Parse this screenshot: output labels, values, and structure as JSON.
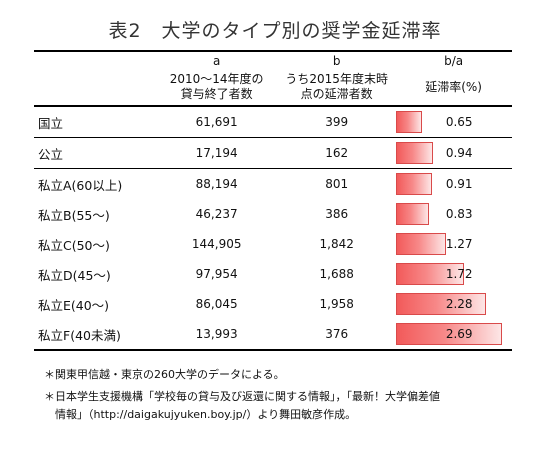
{
  "title": "表2　大学のタイプ別の奨学金延滞率",
  "columns": {
    "a_letter": "a",
    "b_letter": "b",
    "ratio_letter": "b/a",
    "a_label_line1": "2010〜14年度の",
    "a_label_line2": "貸与終了者数",
    "b_label_line1": "うち2015年度末時",
    "b_label_line2": "点の延滞者数",
    "rate_label": "延滞率(%)"
  },
  "rows": [
    {
      "name": "国立",
      "a": "61,691",
      "b": "399",
      "rate": "0.65"
    },
    {
      "name": "公立",
      "a": "17,194",
      "b": "162",
      "rate": "0.94"
    },
    {
      "name": "私立A(60以上)",
      "a": "88,194",
      "b": "801",
      "rate": "0.91"
    },
    {
      "name": "私立B(55〜)",
      "a": "46,237",
      "b": "386",
      "rate": "0.83"
    },
    {
      "name": "私立C(50〜)",
      "a": "144,905",
      "b": "1,842",
      "rate": "1.27"
    },
    {
      "name": "私立D(45〜)",
      "a": "97,954",
      "b": "1,688",
      "rate": "1.72"
    },
    {
      "name": "私立E(40〜)",
      "a": "86,045",
      "b": "1,958",
      "rate": "2.28"
    },
    {
      "name": "私立F(40未満)",
      "a": "13,993",
      "b": "376",
      "rate": "2.69"
    }
  ],
  "notes": [
    "＊関東甲信越・東京の260大学のデータによる。",
    "＊日本学生支援機構「学校毎の貸与及び返還に関する情報」，「最新！大学偏差値",
    "　情報」（http://daigakujyuken.boy.jp/）より舞田敏彦作成。"
  ],
  "colors": {
    "bar_start": "#f25a5a",
    "bar_end": "#fde6e6",
    "bar_border": "#d94a4a"
  }
}
